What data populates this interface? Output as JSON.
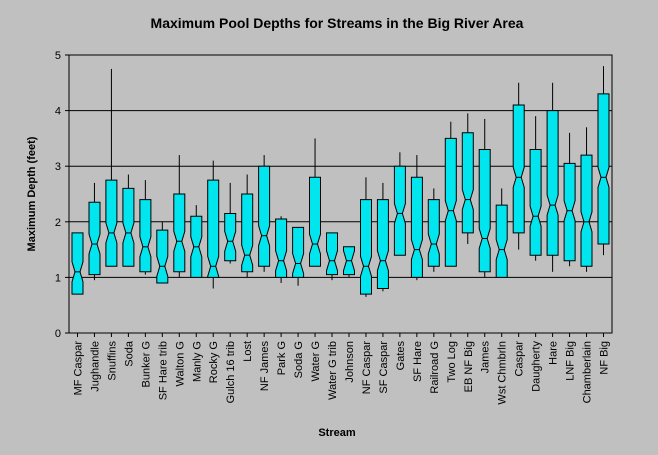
{
  "chart_data": {
    "type": "box",
    "title": "Maximum Pool Depths for Streams in the Big River Area",
    "xlabel": "Stream",
    "ylabel": "Maximum Depth (feet)",
    "ylim": [
      0,
      5
    ],
    "yticks": [
      "0",
      "1",
      "2",
      "3",
      "4",
      "5"
    ],
    "grid": true,
    "box_color": "#00e5ee",
    "categories": [
      "MF Caspar",
      "Jughandle",
      "Snuffins",
      "Soda",
      "Bunker G",
      "SF Hare trib",
      "Walton G",
      "Manly G",
      "Rocky G",
      "Gulch 16 trib",
      "Lost",
      "NF James",
      "Park G",
      "Soda G",
      "Water G",
      "Water G trib",
      "Johnson",
      "NF Caspar",
      "SF Caspar",
      "Gates",
      "SF Hare",
      "Railroad G",
      "Two Log",
      "EB NF Big",
      "James",
      "Wst Chmbrln",
      "Caspar",
      "Daugherty",
      "Hare",
      "LNF Big",
      "Chamberlain",
      "NF Big"
    ],
    "stats": [
      {
        "min": 0.7,
        "q1": 0.7,
        "median": 1.1,
        "q3": 1.8,
        "max": 1.8
      },
      {
        "min": 0.95,
        "q1": 1.05,
        "median": 1.6,
        "q3": 2.35,
        "max": 2.7
      },
      {
        "min": 1.2,
        "q1": 1.2,
        "median": 1.8,
        "q3": 2.75,
        "max": 4.75
      },
      {
        "min": 1.2,
        "q1": 1.2,
        "median": 1.8,
        "q3": 2.6,
        "max": 2.85
      },
      {
        "min": 1.05,
        "q1": 1.1,
        "median": 1.55,
        "q3": 2.4,
        "max": 2.75
      },
      {
        "min": 0.9,
        "q1": 0.9,
        "median": 1.2,
        "q3": 1.85,
        "max": 2.0
      },
      {
        "min": 1.0,
        "q1": 1.1,
        "median": 1.65,
        "q3": 2.5,
        "max": 3.2
      },
      {
        "min": 1.0,
        "q1": 1.0,
        "median": 1.55,
        "q3": 2.1,
        "max": 2.3
      },
      {
        "min": 0.8,
        "q1": 1.0,
        "median": 1.2,
        "q3": 2.75,
        "max": 3.1
      },
      {
        "min": 1.25,
        "q1": 1.3,
        "median": 1.65,
        "q3": 2.15,
        "max": 2.7
      },
      {
        "min": 1.0,
        "q1": 1.1,
        "median": 1.4,
        "q3": 2.5,
        "max": 2.85
      },
      {
        "min": 1.1,
        "q1": 1.2,
        "median": 1.75,
        "q3": 3.0,
        "max": 3.2
      },
      {
        "min": 0.9,
        "q1": 1.0,
        "median": 1.3,
        "q3": 2.05,
        "max": 2.1
      },
      {
        "min": 0.85,
        "q1": 1.0,
        "median": 1.25,
        "q3": 1.9,
        "max": 1.9
      },
      {
        "min": 1.2,
        "q1": 1.2,
        "median": 1.6,
        "q3": 2.8,
        "max": 3.5
      },
      {
        "min": 0.95,
        "q1": 1.05,
        "median": 1.3,
        "q3": 1.8,
        "max": 1.8
      },
      {
        "min": 1.0,
        "q1": 1.05,
        "median": 1.3,
        "q3": 1.55,
        "max": 1.55
      },
      {
        "min": 0.65,
        "q1": 0.7,
        "median": 1.2,
        "q3": 2.4,
        "max": 2.8
      },
      {
        "min": 0.75,
        "q1": 0.8,
        "median": 1.3,
        "q3": 2.4,
        "max": 2.7
      },
      {
        "min": 1.4,
        "q1": 1.4,
        "median": 2.15,
        "q3": 3.0,
        "max": 3.25
      },
      {
        "min": 0.95,
        "q1": 1.0,
        "median": 1.5,
        "q3": 2.8,
        "max": 3.2
      },
      {
        "min": 1.1,
        "q1": 1.2,
        "median": 1.6,
        "q3": 2.4,
        "max": 2.6
      },
      {
        "min": 1.2,
        "q1": 1.2,
        "median": 2.2,
        "q3": 3.5,
        "max": 3.8
      },
      {
        "min": 1.6,
        "q1": 1.8,
        "median": 2.4,
        "q3": 3.6,
        "max": 3.95
      },
      {
        "min": 1.0,
        "q1": 1.1,
        "median": 1.7,
        "q3": 3.3,
        "max": 3.85
      },
      {
        "min": 1.0,
        "q1": 1.0,
        "median": 1.5,
        "q3": 2.3,
        "max": 2.6
      },
      {
        "min": 1.5,
        "q1": 1.8,
        "median": 2.8,
        "q3": 4.1,
        "max": 4.5
      },
      {
        "min": 1.3,
        "q1": 1.4,
        "median": 2.1,
        "q3": 3.3,
        "max": 3.9
      },
      {
        "min": 1.1,
        "q1": 1.4,
        "median": 2.3,
        "q3": 4.0,
        "max": 4.5
      },
      {
        "min": 1.2,
        "q1": 1.3,
        "median": 2.2,
        "q3": 3.05,
        "max": 3.6
      },
      {
        "min": 1.1,
        "q1": 1.2,
        "median": 2.0,
        "q3": 3.2,
        "max": 3.7
      },
      {
        "min": 1.4,
        "q1": 1.6,
        "median": 2.8,
        "q3": 4.3,
        "max": 4.8
      }
    ]
  }
}
